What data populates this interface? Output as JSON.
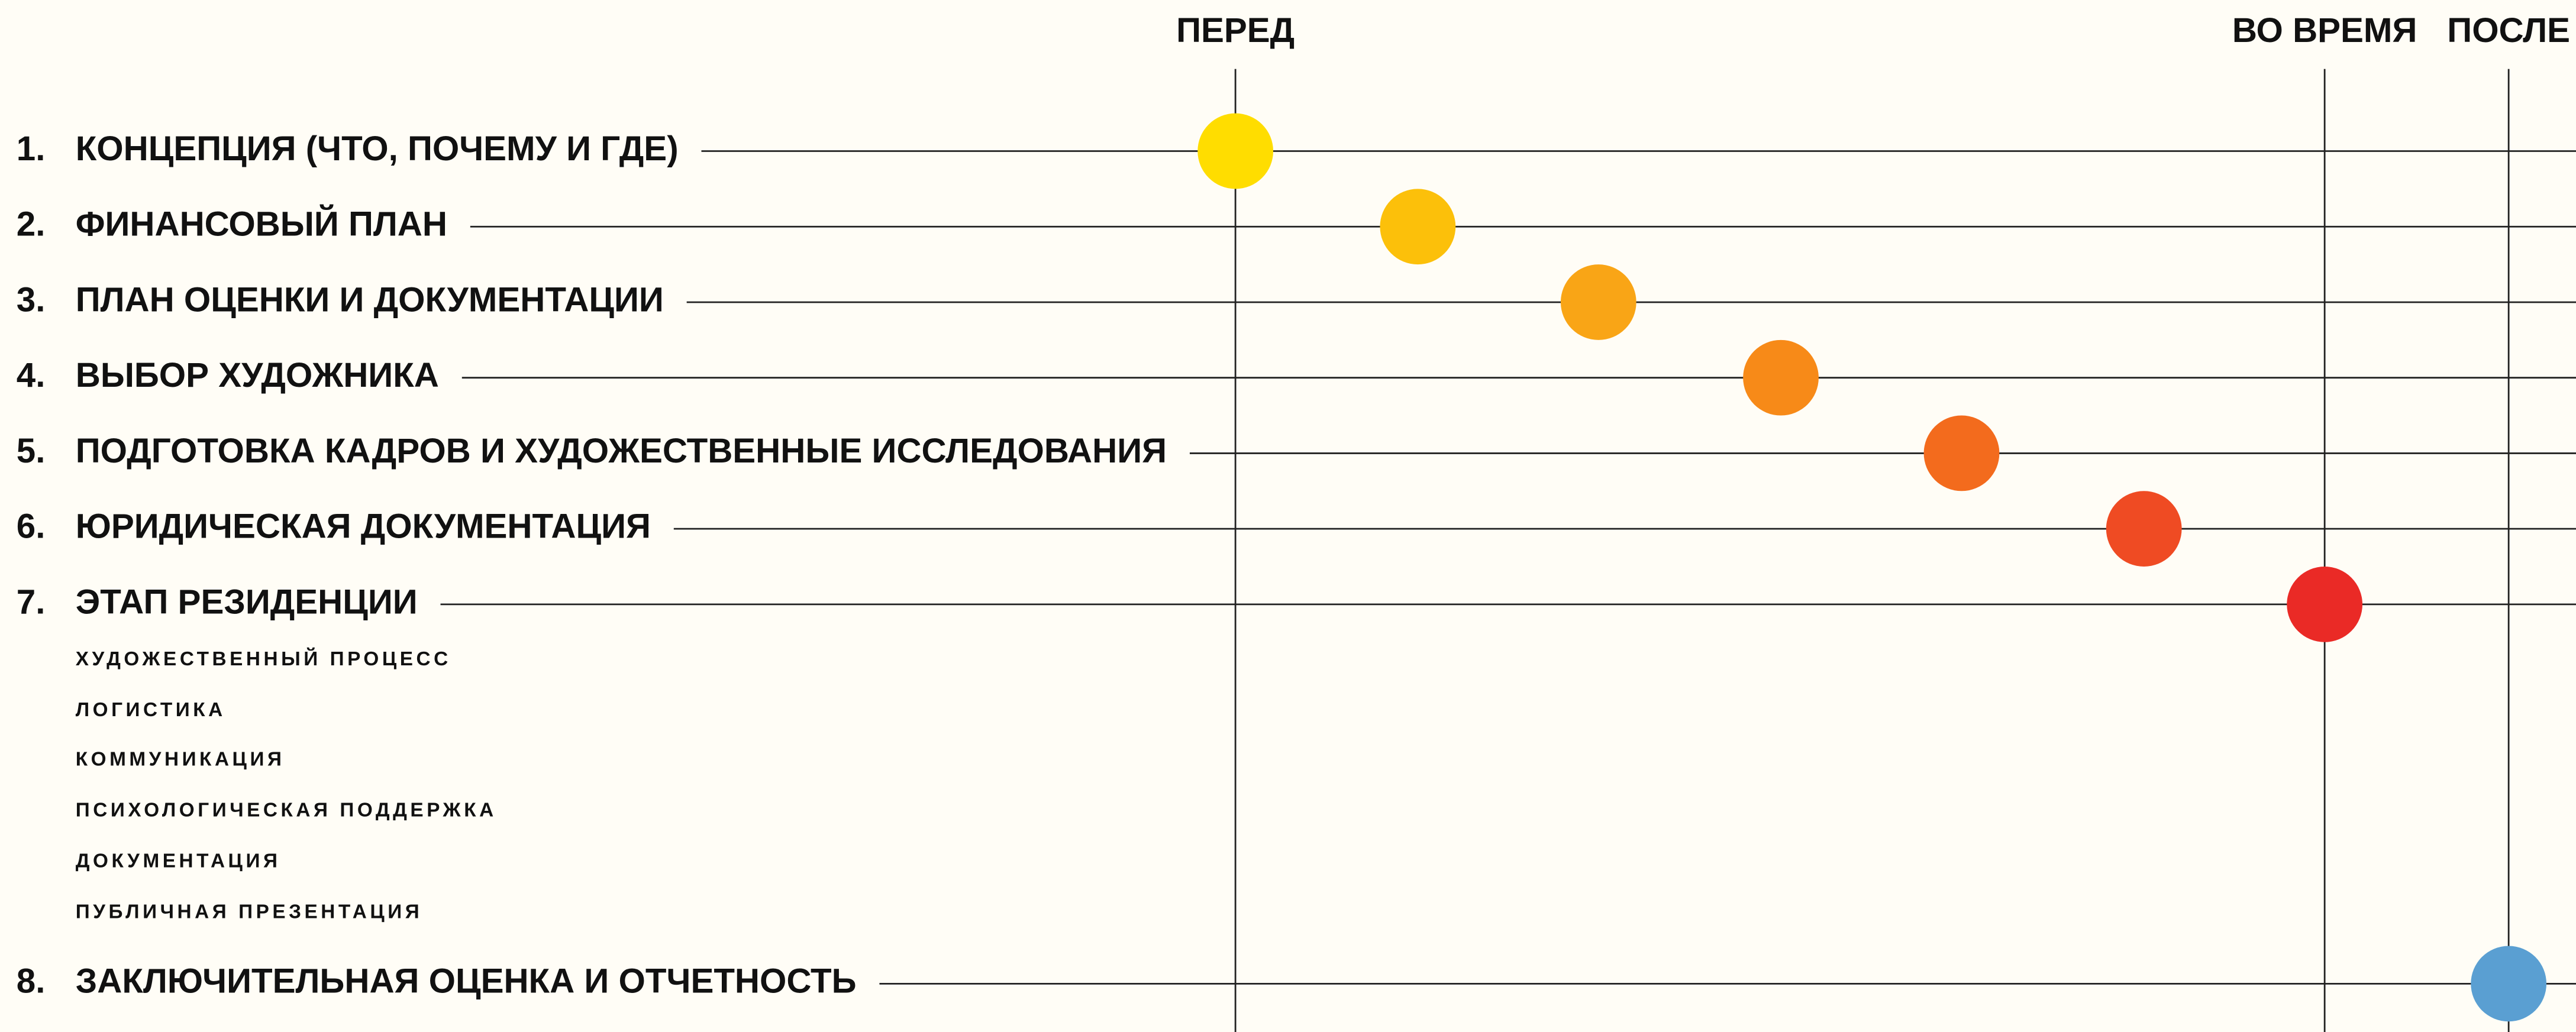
{
  "phases": [
    "ПЕРЕД",
    "ВО ВРЕМЯ",
    "ПОСЛЕ"
  ],
  "steps": [
    {
      "number": "1.",
      "label": "КОНЦЕПЦИЯ (ЧТО, ПОЧЕМУ И ГДЕ)",
      "color": "#ffdd00"
    },
    {
      "number": "2.",
      "label": "ФИНАНСОВЫЙ ПЛАН",
      "color": "#fcc00a"
    },
    {
      "number": "3.",
      "label": "ПЛАН ОЦЕНКИ И ДОКУМЕНТАЦИИ",
      "color": "#f9a516"
    },
    {
      "number": "4.",
      "label": "ВЫБОР ХУДОЖНИКА",
      "color": "#f78a18"
    },
    {
      "number": "5.",
      "label": "ПОДГОТОВКА КАДРОВ И ХУДОЖЕСТВЕННЫЕ ИССЛЕДОВАНИЯ",
      "color": "#f36b1d"
    },
    {
      "number": "6.",
      "label": "ЮРИДИЧЕСКАЯ ДОКУМЕНТАЦИЯ",
      "color": "#ef4b23"
    },
    {
      "number": "7.",
      "label": "ЭТАП РЕЗИДЕНЦИИ",
      "color": "#ea2a26",
      "subitems": [
        "ХУДОЖЕСТВЕННЫЙ ПРОЦЕСС",
        "ЛОГИСТИКА",
        "КОММУНИКАЦИЯ",
        "ПСИХОЛОГИЧЕСКАЯ ПОДДЕРЖКА",
        "ДОКУМЕНТАЦИЯ",
        "ПУБЛИЧНАЯ ПРЕЗЕНТАЦИЯ"
      ]
    },
    {
      "number": "8.",
      "label": "ЗАКЛЮЧИТЕЛЬНАЯ ОЦЕНКА И ОТЧЕТНОСТЬ",
      "color": "#5a9fd2"
    }
  ]
}
